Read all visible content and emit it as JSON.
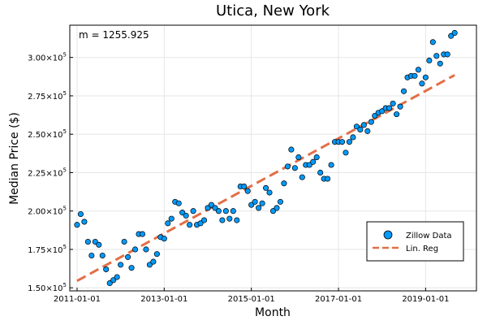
{
  "chart_data": {
    "type": "scatter",
    "title": "Utica, New York",
    "xlabel": "Month",
    "ylabel": "Median Price ($)",
    "annotation": "m = 1255.925",
    "x_start": "2011-01",
    "x_step": "month",
    "xlim": [
      "2010-11",
      "2020-03"
    ],
    "ylim": [
      148000,
      321000
    ],
    "grid": true,
    "legend_placement": "bottom-right",
    "x_ticks": [
      "2011-01-01",
      "2013-01-01",
      "2015-01-01",
      "2017-01-01",
      "2019-01-01"
    ],
    "y_ticks": [
      {
        "value": 150000,
        "mantissa": "1.50",
        "base": "×10",
        "exp": "5"
      },
      {
        "value": 175000,
        "mantissa": "1.75",
        "base": "×10",
        "exp": "5"
      },
      {
        "value": 200000,
        "mantissa": "2.00",
        "base": "×10",
        "exp": "5"
      },
      {
        "value": 225000,
        "mantissa": "2.25",
        "base": "×10",
        "exp": "5"
      },
      {
        "value": 250000,
        "mantissa": "2.50",
        "base": "×10",
        "exp": "5"
      },
      {
        "value": 275000,
        "mantissa": "2.75",
        "base": "×10",
        "exp": "5"
      },
      {
        "value": 300000,
        "mantissa": "3.00",
        "base": "×10",
        "exp": "5"
      }
    ],
    "series": [
      {
        "name": "Zillow Data",
        "kind": "scatter",
        "color": "#009AFA",
        "values": [
          191000,
          198000,
          193000,
          180000,
          171000,
          180000,
          178000,
          171000,
          162000,
          153000,
          155000,
          157000,
          165000,
          180000,
          170000,
          163000,
          175000,
          185000,
          185000,
          175000,
          165000,
          167000,
          172000,
          183000,
          182000,
          192000,
          195000,
          206000,
          205000,
          199000,
          197000,
          191000,
          200000,
          191000,
          192000,
          194000,
          202000,
          204000,
          202000,
          200000,
          194000,
          200000,
          195000,
          200000,
          194000,
          216000,
          216000,
          213000,
          204000,
          206000,
          202000,
          205000,
          215000,
          212000,
          200000,
          202000,
          206000,
          218000,
          229000,
          240000,
          228000,
          235000,
          222000,
          230000,
          230000,
          232000,
          235000,
          225000,
          221000,
          221000,
          230000,
          245000,
          245000,
          245000,
          238000,
          245000,
          248000,
          255000,
          253000,
          256000,
          252000,
          258000,
          262000,
          264000,
          265000,
          267000,
          267000,
          270000,
          263000,
          268000,
          278000,
          287000,
          288000,
          288000,
          292000,
          283000,
          287000,
          298000,
          310000,
          301000,
          296000,
          302000,
          302000,
          314000,
          316000
        ]
      },
      {
        "name": "Lin. Reg",
        "kind": "line",
        "color": "#E26F46",
        "start_value": 154500,
        "end_value": 288500
      }
    ]
  }
}
